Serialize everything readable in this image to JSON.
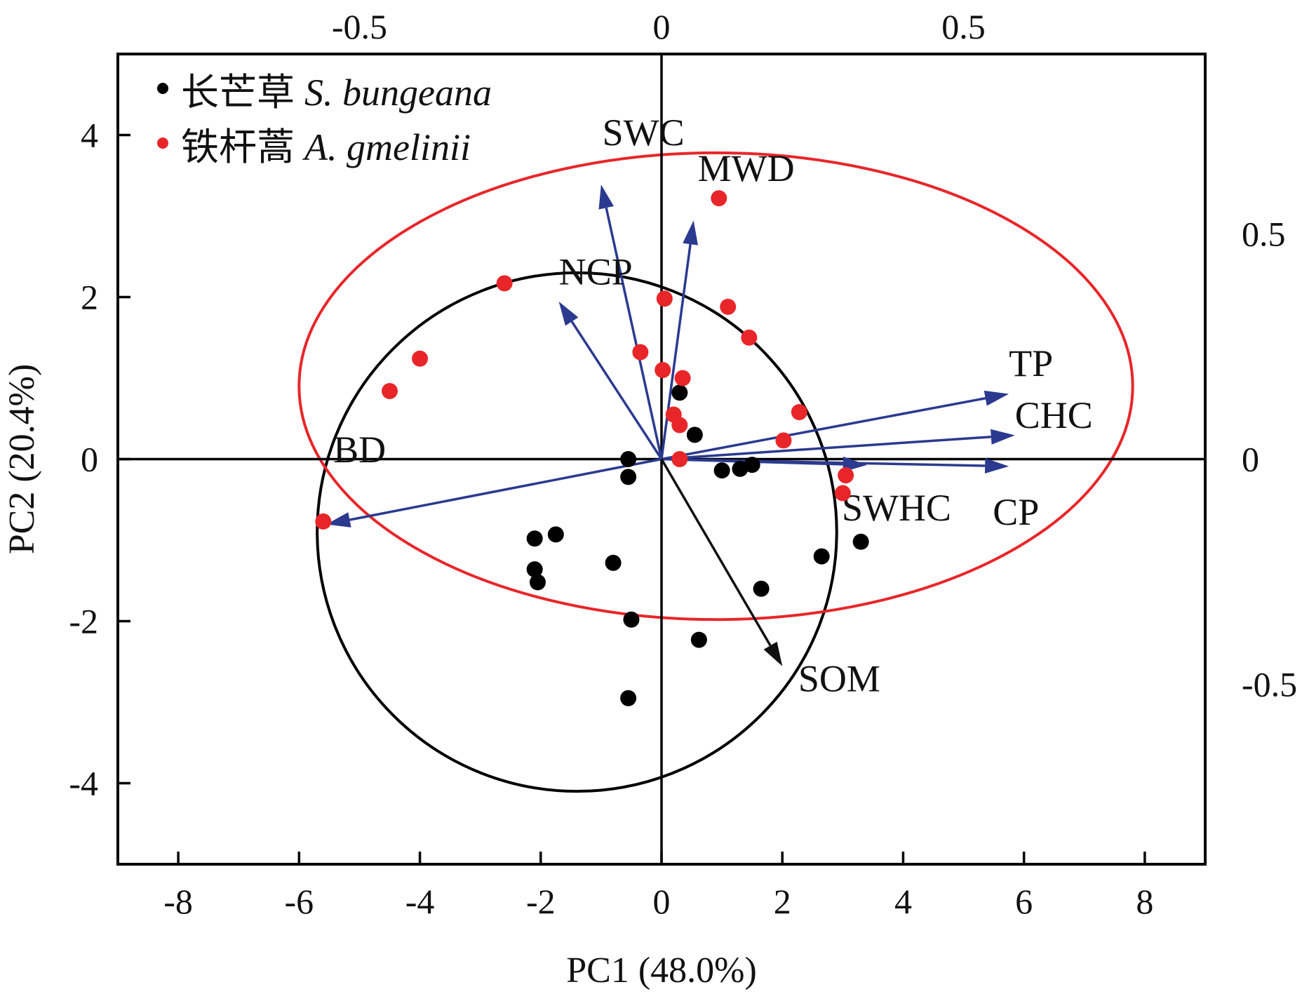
{
  "chart_data": {
    "type": "scatter",
    "subtype": "pca-biplot",
    "title": "",
    "xlabel": "PC1 (48.0%)",
    "ylabel": "PC2 (20.4%)",
    "xlim": [
      -9,
      9
    ],
    "ylim": [
      -5,
      5
    ],
    "xticks": [
      -8,
      -6,
      -4,
      -2,
      0,
      2,
      4,
      6,
      8
    ],
    "yticks": [
      -4,
      -2,
      0,
      2,
      4
    ],
    "loading_xlim": [
      -0.9,
      0.9
    ],
    "loading_ylim": [
      -0.9,
      0.9
    ],
    "loading_xticks": [
      -0.5,
      0,
      0.5
    ],
    "loading_yticks": [
      -0.5,
      0,
      0.5
    ],
    "x_tick_labels": [
      "-8",
      "-6",
      "-4",
      "-2",
      "0",
      "2",
      "4",
      "6",
      "8"
    ],
    "y_tick_labels": [
      "-4",
      "-2",
      "0",
      "2",
      "4"
    ],
    "top_tick_labels": [
      "-0.5",
      "0",
      "0.5"
    ],
    "right_tick_labels": [
      "-0.5",
      "0",
      "0.5"
    ],
    "legend": {
      "placement": "top-left",
      "entries": [
        {
          "marker": "●",
          "chinese": "长芒草",
          "latin": "S. bungeana",
          "color": "#000000"
        },
        {
          "marker": "●",
          "chinese": "铁杆蒿",
          "latin": "A. gmelinii",
          "color": "#e8262a"
        }
      ]
    },
    "series": [
      {
        "name": "长芒草 S. bungeana",
        "color": "#000000",
        "points": [
          [
            0.3,
            0.82
          ],
          [
            0.55,
            0.3
          ],
          [
            -0.55,
            0.0
          ],
          [
            -0.55,
            -0.22
          ],
          [
            1.0,
            -0.14
          ],
          [
            1.3,
            -0.12
          ],
          [
            1.5,
            -0.07
          ],
          [
            -2.1,
            -0.98
          ],
          [
            -1.75,
            -0.93
          ],
          [
            -2.1,
            -1.36
          ],
          [
            -2.05,
            -1.52
          ],
          [
            -0.8,
            -1.28
          ],
          [
            -0.5,
            -1.98
          ],
          [
            0.62,
            -2.23
          ],
          [
            -0.55,
            -2.95
          ],
          [
            2.65,
            -1.2
          ],
          [
            3.3,
            -1.02
          ],
          [
            1.65,
            -1.6
          ]
        ],
        "ellipse": {
          "cx": -1.4,
          "cy": -0.9,
          "rx": 4.3,
          "ry": 3.2,
          "angle_deg": 0
        }
      },
      {
        "name": "铁杆蒿 A. gmelinii",
        "color": "#e8262a",
        "points": [
          [
            0.95,
            3.22
          ],
          [
            -2.6,
            2.17
          ],
          [
            -4.0,
            1.24
          ],
          [
            -4.5,
            0.84
          ],
          [
            0.05,
            1.98
          ],
          [
            1.1,
            1.88
          ],
          [
            1.45,
            1.5
          ],
          [
            -0.35,
            1.32
          ],
          [
            0.02,
            1.1
          ],
          [
            0.35,
            1.0
          ],
          [
            0.2,
            0.55
          ],
          [
            0.3,
            0.42
          ],
          [
            2.28,
            0.58
          ],
          [
            2.02,
            0.23
          ],
          [
            0.3,
            0.0
          ],
          [
            3.05,
            -0.2
          ],
          [
            3.0,
            -0.42
          ],
          [
            -5.6,
            -0.77
          ]
        ],
        "ellipse": {
          "cx": 0.9,
          "cy": 0.9,
          "rx": 6.9,
          "ry": 2.88,
          "angle_deg": 0
        }
      }
    ],
    "loadings": [
      {
        "name": "SWC",
        "x": -0.1,
        "y": 0.61,
        "color": "#2b3a8f"
      },
      {
        "name": "MWD",
        "x": 0.053,
        "y": 0.53,
        "color": "#2b3a8f"
      },
      {
        "name": "NCP",
        "x": -0.17,
        "y": 0.35,
        "color": "#2b3a8f"
      },
      {
        "name": "TP",
        "x": 0.575,
        "y": 0.145,
        "color": "#2b3a8f"
      },
      {
        "name": "CHC",
        "x": 0.585,
        "y": 0.053,
        "color": "#2b3a8f"
      },
      {
        "name": "CP",
        "x": 0.575,
        "y": -0.016,
        "color": "#2b3a8f"
      },
      {
        "name": "SWHC",
        "x": 0.34,
        "y": -0.013,
        "color": "#2b3a8f"
      },
      {
        "name": "BD",
        "x": -0.555,
        "y": -0.145,
        "color": "#2b3a8f"
      },
      {
        "name": "SOM",
        "x": 0.2,
        "y": -0.46,
        "color": "#111111"
      }
    ]
  }
}
